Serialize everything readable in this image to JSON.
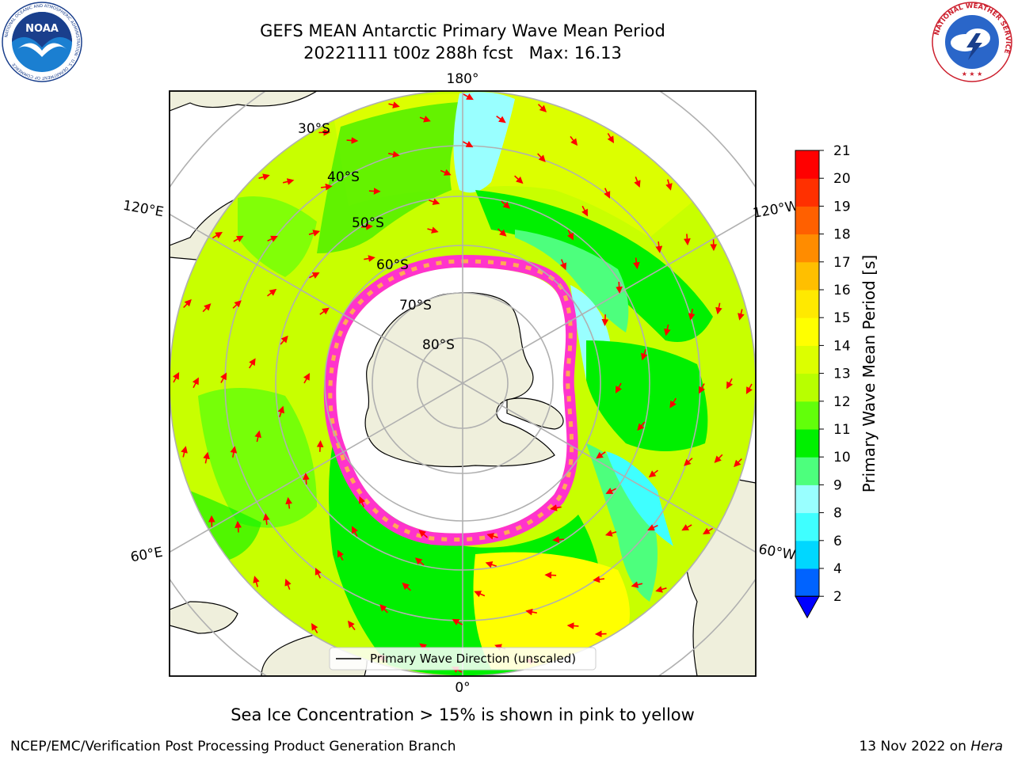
{
  "header": {
    "title_line1": "GEFS MEAN Antarctic Primary Wave Mean Period",
    "title_line2": "20221111 t00z 288h fcst   Max: 16.13"
  },
  "logos": {
    "left": {
      "name": "noaa-logo",
      "text": "NOAA",
      "ring_text": "NATIONAL OCEANIC AND ATMOSPHERIC ADMINISTRATION · U.S. DEPARTMENT OF COMMERCE"
    },
    "right": {
      "name": "nws-logo",
      "ring_text": "NATIONAL WEATHER SERVICE"
    }
  },
  "map": {
    "projection": "south-polar-stereographic",
    "longitude_labels": {
      "top": "180°",
      "bottom": "0°",
      "upper_left": "120°E",
      "upper_right": "120°W",
      "lower_left": "60°E",
      "lower_right": "60°W"
    },
    "latitude_labels": [
      "30°S",
      "40°S",
      "50°S",
      "60°S",
      "70°S",
      "80°S"
    ],
    "legend": "Primary Wave Direction (unscaled)"
  },
  "colorbar": {
    "label": "Primary Wave Mean Period [s]",
    "ticks": [
      "2",
      "4",
      "6",
      "8",
      "9",
      "10",
      "11",
      "12",
      "13",
      "14",
      "15",
      "16",
      "17",
      "18",
      "19",
      "20",
      "21"
    ],
    "colors": [
      "#0063ff",
      "#00d7ff",
      "#3fffff",
      "#99ffff",
      "#4dff7d",
      "#00f000",
      "#62ff0a",
      "#b8ff00",
      "#dcff00",
      "#ffff00",
      "#ffe900",
      "#ffbf00",
      "#ff8c00",
      "#ff6000",
      "#ff3000",
      "#ff0000"
    ],
    "under_color": "#0000ff"
  },
  "caption": "Sea Ice Concentration > 15% is shown in pink to yellow",
  "footer": {
    "left": "NCEP/EMC/Verification Post Processing Product Generation Branch",
    "right_date": "13 Nov 2022 on ",
    "right_host": "Hera"
  }
}
